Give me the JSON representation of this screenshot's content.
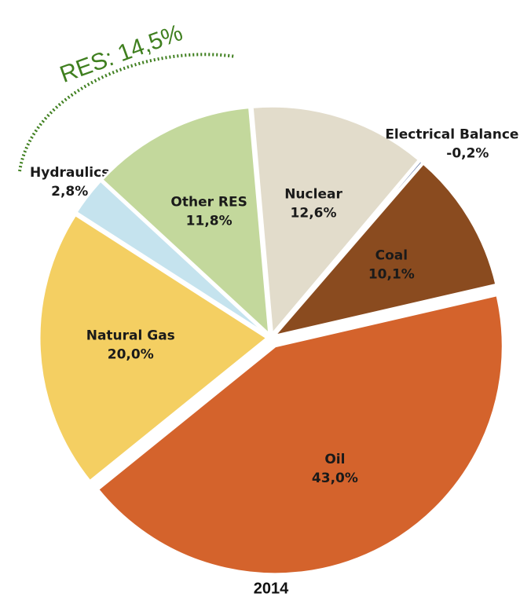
{
  "chart_data": {
    "type": "pie",
    "title": "2014",
    "annotation": "RES: 14,5%",
    "categories": [
      "Nuclear",
      "Electrical Balance",
      "Coal",
      "Oil",
      "Natural Gas",
      "Hydraulics",
      "Other RES"
    ],
    "values": [
      12.6,
      -0.2,
      10.1,
      43.0,
      20.0,
      2.8,
      11.8
    ],
    "value_labels": [
      "12,6%",
      "-0,2%",
      "10,1%",
      "43,0%",
      "20,0%",
      "2,8%",
      "11,8%"
    ],
    "colors": [
      "#e2dccb",
      "#1f3a7a",
      "#8a4b1f",
      "#d4632c",
      "#f4cf62",
      "#c5e3ee",
      "#c3d89c"
    ]
  }
}
